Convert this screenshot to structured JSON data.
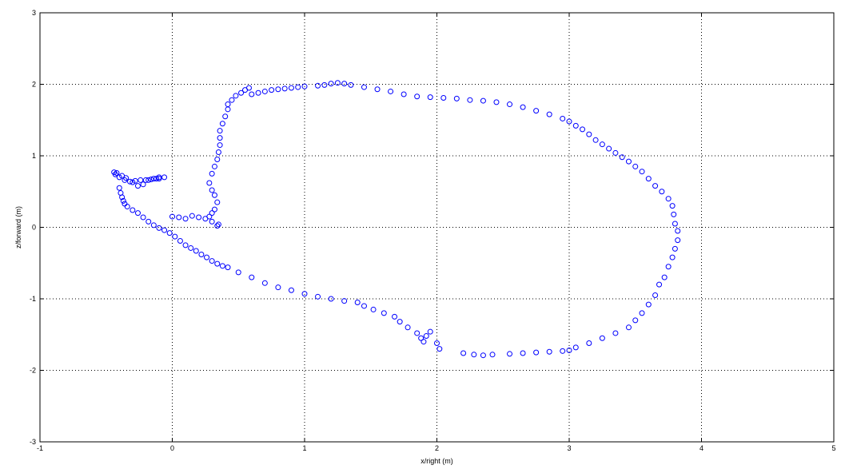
{
  "chart_data": {
    "type": "scatter",
    "title": "",
    "xlabel": "x/right (m)",
    "ylabel": "z/forward (m)",
    "xlim": [
      -1,
      5
    ],
    "ylim": [
      -3,
      3
    ],
    "grid": true,
    "xticks": [
      -1,
      0,
      1,
      2,
      3,
      4,
      5
    ],
    "yticks": [
      -3,
      -2,
      -1,
      0,
      1,
      2,
      3
    ],
    "marker": "circle",
    "color": "#0000ff",
    "x": [
      -0.1,
      -0.12,
      -0.16,
      -0.2,
      -0.24,
      -0.28,
      -0.32,
      -0.36,
      -0.4,
      -0.43,
      -0.44,
      -0.42,
      -0.38,
      -0.35,
      -0.3,
      -0.26,
      -0.22,
      -0.18,
      -0.14,
      -0.1,
      -0.06,
      -0.4,
      -0.39,
      -0.38,
      -0.37,
      -0.36,
      -0.34,
      -0.3,
      -0.26,
      -0.22,
      -0.18,
      -0.14,
      -0.1,
      -0.06,
      -0.02,
      0.02,
      0.06,
      0.1,
      0.14,
      0.18,
      0.22,
      0.26,
      0.3,
      0.34,
      0.38,
      0.42,
      0.5,
      0.6,
      0.7,
      0.8,
      0.9,
      1.0,
      1.1,
      1.2,
      1.3,
      1.4,
      1.45,
      1.52,
      1.6,
      1.68,
      1.72,
      1.78,
      1.85,
      1.88,
      1.9,
      1.92,
      1.95,
      2.0,
      2.02,
      2.2,
      2.28,
      2.35,
      2.42,
      2.55,
      2.65,
      2.75,
      2.85,
      2.95,
      3.0,
      3.05,
      3.15,
      3.25,
      3.35,
      3.45,
      3.5,
      3.55,
      3.6,
      3.65,
      3.68,
      3.72,
      3.75,
      3.78,
      3.8,
      3.82,
      3.82,
      3.8,
      3.79,
      3.78,
      3.75,
      3.7,
      3.65,
      3.6,
      3.55,
      3.5,
      3.45,
      3.4,
      3.35,
      3.3,
      3.25,
      3.2,
      3.15,
      3.1,
      3.05,
      3.0,
      2.95,
      2.85,
      2.75,
      2.65,
      2.55,
      2.45,
      2.35,
      2.25,
      2.15,
      2.05,
      1.95,
      1.85,
      1.75,
      1.65,
      1.55,
      1.45,
      1.35,
      1.3,
      1.25,
      1.2,
      1.15,
      1.1,
      1.0,
      0.95,
      0.9,
      0.85,
      0.8,
      0.75,
      0.7,
      0.65,
      0.6,
      0.58,
      0.55,
      0.52,
      0.48,
      0.45,
      0.42,
      0.42,
      0.4,
      0.38,
      0.36,
      0.36,
      0.36,
      0.35,
      0.34,
      0.32,
      0.3,
      0.28,
      0.3,
      0.32,
      0.34,
      0.32,
      0.3,
      0.28,
      0.25,
      0.2,
      0.15,
      0.1,
      0.05,
      0.0,
      0.3,
      0.35,
      0.34
    ],
    "y": [
      0.7,
      0.68,
      0.67,
      0.66,
      0.66,
      0.65,
      0.64,
      0.66,
      0.7,
      0.74,
      0.77,
      0.76,
      0.72,
      0.69,
      0.63,
      0.58,
      0.6,
      0.66,
      0.68,
      0.68,
      0.7,
      0.55,
      0.48,
      0.42,
      0.37,
      0.33,
      0.29,
      0.24,
      0.2,
      0.14,
      0.08,
      0.03,
      -0.01,
      -0.04,
      -0.08,
      -0.13,
      -0.19,
      -0.25,
      -0.29,
      -0.33,
      -0.38,
      -0.42,
      -0.47,
      -0.51,
      -0.54,
      -0.56,
      -0.63,
      -0.7,
      -0.78,
      -0.84,
      -0.88,
      -0.93,
      -0.97,
      -1.0,
      -1.03,
      -1.05,
      -1.1,
      -1.15,
      -1.2,
      -1.25,
      -1.32,
      -1.4,
      -1.48,
      -1.55,
      -1.6,
      -1.52,
      -1.46,
      -1.62,
      -1.7,
      -1.76,
      -1.78,
      -1.79,
      -1.78,
      -1.77,
      -1.76,
      -1.75,
      -1.74,
      -1.73,
      -1.72,
      -1.68,
      -1.62,
      -1.55,
      -1.48,
      -1.4,
      -1.3,
      -1.2,
      -1.08,
      -0.95,
      -0.8,
      -0.7,
      -0.55,
      -0.42,
      -0.3,
      -0.18,
      -0.05,
      0.05,
      0.18,
      0.3,
      0.4,
      0.5,
      0.58,
      0.68,
      0.78,
      0.85,
      0.92,
      0.98,
      1.04,
      1.1,
      1.16,
      1.22,
      1.3,
      1.37,
      1.42,
      1.48,
      1.52,
      1.58,
      1.63,
      1.68,
      1.72,
      1.75,
      1.77,
      1.78,
      1.8,
      1.81,
      1.82,
      1.83,
      1.86,
      1.9,
      1.93,
      1.96,
      1.99,
      2.01,
      2.02,
      2.01,
      1.99,
      1.98,
      1.97,
      1.96,
      1.95,
      1.94,
      1.93,
      1.92,
      1.9,
      1.88,
      1.86,
      1.95,
      1.92,
      1.88,
      1.84,
      1.78,
      1.72,
      1.65,
      1.55,
      1.45,
      1.35,
      1.25,
      1.15,
      1.05,
      0.95,
      0.85,
      0.75,
      0.62,
      0.52,
      0.45,
      0.35,
      0.25,
      0.2,
      0.15,
      0.12,
      0.14,
      0.16,
      0.12,
      0.14,
      0.15,
      0.08,
      0.04,
      0.02
    ]
  }
}
